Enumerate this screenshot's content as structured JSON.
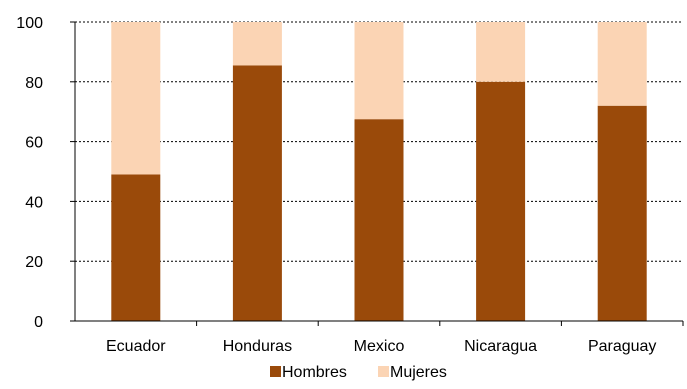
{
  "chart_data": {
    "type": "bar",
    "stacked": true,
    "categories": [
      "Ecuador",
      "Honduras",
      "Mexico",
      "Nicaragua",
      "Paraguay"
    ],
    "series": [
      {
        "name": "Hombres",
        "color": "#9A4A0A",
        "values": [
          49,
          85.5,
          67.5,
          80,
          72
        ]
      },
      {
        "name": "Mujeres",
        "color": "#FBD4B4",
        "values": [
          51,
          14.5,
          32.5,
          20,
          28
        ]
      }
    ],
    "title": "",
    "xlabel": "",
    "ylabel": "",
    "ylim": [
      0,
      100
    ],
    "yticks": [
      0,
      20,
      40,
      60,
      80,
      100
    ],
    "grid": {
      "horizontal": true,
      "style": "dotted"
    },
    "legend": {
      "position": "bottom"
    }
  }
}
